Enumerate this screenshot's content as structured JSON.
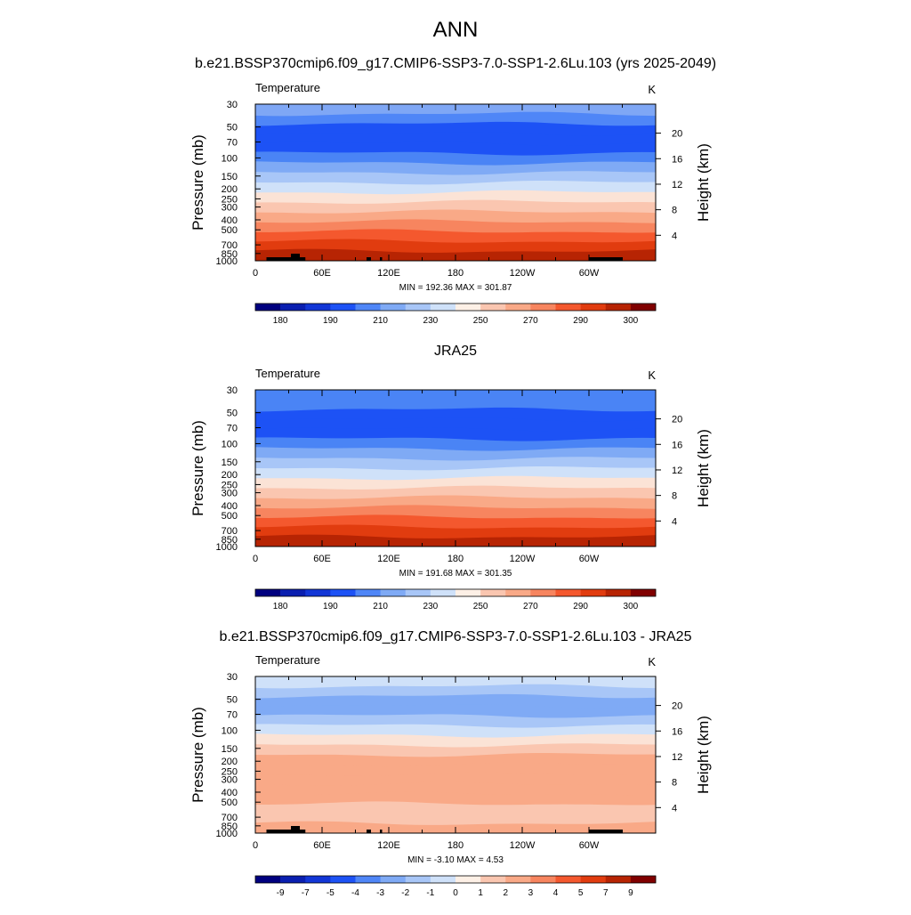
{
  "title": "ANN",
  "chart_data": [
    {
      "type": "heatmap",
      "title": "b.e21.BSSP370cmip6.f09_g17.CMIP6-SSP3-7.0-SSP1-2.6Lu.103 (yrs 2025-2049)",
      "left_label": "Temperature",
      "units": "K",
      "ylabel": "Pressure (mb)",
      "ylabel_right": "Height (km)",
      "x_ticks": [
        "0",
        "60E",
        "120E",
        "180",
        "120W",
        "60W"
      ],
      "pressure_ticks": [
        "30",
        "50",
        "70",
        "100",
        "150",
        "200",
        "250",
        "300",
        "400",
        "500",
        "700",
        "850",
        "1000"
      ],
      "height_ticks": [
        "4",
        "8",
        "12",
        "16",
        "20"
      ],
      "stats": "MIN = 192.36  MAX = 301.87",
      "colorbar_labels": [
        "180",
        "190",
        "210",
        "230",
        "250",
        "270",
        "290",
        "300"
      ],
      "band_colors": [
        "#7fa7f5",
        "#4f86f7",
        "#1d52f5",
        "#1d52f5",
        "#1d52f5",
        "#4a84f5",
        "#7faaf5",
        "#a8c6f7",
        "#cfe1f9",
        "#fbe3d6",
        "#fac6b0",
        "#f9a987",
        "#f7855f",
        "#f4582e",
        "#e13c0f",
        "#b72403"
      ],
      "topography": true
    },
    {
      "type": "heatmap",
      "title": "JRA25",
      "left_label": "Temperature",
      "units": "K",
      "ylabel": "Pressure (mb)",
      "ylabel_right": "Height (km)",
      "x_ticks": [
        "0",
        "60E",
        "120E",
        "180",
        "120W",
        "60W"
      ],
      "pressure_ticks": [
        "30",
        "50",
        "70",
        "100",
        "150",
        "200",
        "250",
        "300",
        "400",
        "500",
        "700",
        "850",
        "1000"
      ],
      "height_ticks": [
        "4",
        "8",
        "12",
        "16",
        "20"
      ],
      "stats": "MIN = 191.68  MAX = 301.35",
      "colorbar_labels": [
        "180",
        "190",
        "210",
        "230",
        "250",
        "270",
        "290",
        "300"
      ],
      "band_colors": [
        "#4a84f5",
        "#4a84f5",
        "#1d52f5",
        "#1d52f5",
        "#1d52f5",
        "#4a84f5",
        "#7faaf5",
        "#a8c6f7",
        "#cfe1f9",
        "#fbe3d6",
        "#fac6b0",
        "#f9a987",
        "#f7855f",
        "#f4582e",
        "#e13c0f",
        "#b72403"
      ],
      "topography": false
    },
    {
      "type": "heatmap",
      "title": "b.e21.BSSP370cmip6.f09_g17.CMIP6-SSP3-7.0-SSP1-2.6Lu.103 - JRA25",
      "left_label": "Temperature",
      "units": "K",
      "ylabel": "Pressure (mb)",
      "ylabel_right": "Height (km)",
      "x_ticks": [
        "0",
        "60E",
        "120E",
        "180",
        "120W",
        "60W"
      ],
      "pressure_ticks": [
        "30",
        "50",
        "70",
        "100",
        "150",
        "200",
        "250",
        "300",
        "400",
        "500",
        "700",
        "850",
        "1000"
      ],
      "height_ticks": [
        "4",
        "8",
        "12",
        "16",
        "20"
      ],
      "stats": "MIN =  -3.10  MAX =   4.53",
      "colorbar_labels": [
        "-9",
        "-7",
        "-5",
        "-4",
        "-3",
        "-2",
        "-1",
        "0",
        "1",
        "2",
        "3",
        "4",
        "5",
        "7",
        "9"
      ],
      "band_colors": [
        "#cfe1f9",
        "#a8c6f7",
        "#7faaf5",
        "#7faaf5",
        "#a8c6f7",
        "#cfe1f9",
        "#fbe3d6",
        "#fac6b0",
        "#f9a987",
        "#f9a987",
        "#f9a987",
        "#f9a987",
        "#f9a987",
        "#fac6b0",
        "#fac6b0",
        "#f9a987"
      ],
      "topography": true
    }
  ],
  "colorbar_colors": [
    "#00007f",
    "#0a1fb0",
    "#1236d6",
    "#1d52f5",
    "#4f86f7",
    "#7faaf5",
    "#a8c6f7",
    "#cfe1f9",
    "#fdf0e6",
    "#fac6b0",
    "#f9a987",
    "#f7855f",
    "#f4582e",
    "#e13c0f",
    "#b72403",
    "#800000"
  ]
}
